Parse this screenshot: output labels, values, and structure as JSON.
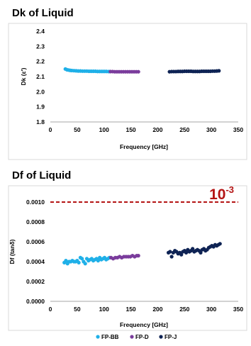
{
  "chart_data": [
    {
      "type": "scatter",
      "title": "Dk of Liquid",
      "xlabel": "Frequency [GHz]",
      "ylabel": "Dk (ε')",
      "xlim": [
        0,
        350
      ],
      "ylim": [
        1.8,
        2.4
      ],
      "xticks": [
        "0",
        "50",
        "100",
        "150",
        "200",
        "250",
        "300",
        "350"
      ],
      "yticks": [
        "1.8",
        "1.9",
        "2.0",
        "2.1",
        "2.2",
        "2.3",
        "2.4"
      ],
      "grid": false,
      "series": [
        {
          "name": "FP-BB",
          "color": "#1fb0e8",
          "x": [
            28,
            31,
            34,
            37,
            40,
            44,
            48,
            52,
            56,
            60,
            64,
            68,
            72,
            76,
            80,
            84,
            88,
            92,
            96,
            100,
            104,
            108,
            111
          ],
          "y": [
            2.15,
            2.145,
            2.143,
            2.141,
            2.14,
            2.139,
            2.138,
            2.137,
            2.137,
            2.136,
            2.136,
            2.136,
            2.135,
            2.135,
            2.135,
            2.135,
            2.134,
            2.134,
            2.134,
            2.134,
            2.134,
            2.133,
            2.133
          ]
        },
        {
          "name": "FP-D",
          "color": "#7a3c9c",
          "x": [
            112,
            116,
            120,
            124,
            128,
            132,
            136,
            140,
            144,
            148,
            152,
            156,
            160,
            164
          ],
          "y": [
            2.133,
            2.133,
            2.132,
            2.132,
            2.132,
            2.132,
            2.132,
            2.132,
            2.132,
            2.132,
            2.132,
            2.132,
            2.132,
            2.132
          ]
        },
        {
          "name": "FP-J",
          "color": "#0e2354",
          "x": [
            222,
            226,
            230,
            234,
            238,
            242,
            246,
            250,
            254,
            258,
            262,
            266,
            270,
            274,
            278,
            282,
            286,
            290,
            294,
            298,
            302,
            306,
            310,
            314
          ],
          "y": [
            2.132,
            2.133,
            2.133,
            2.133,
            2.134,
            2.134,
            2.134,
            2.135,
            2.135,
            2.135,
            2.135,
            2.134,
            2.134,
            2.134,
            2.134,
            2.135,
            2.135,
            2.135,
            2.135,
            2.135,
            2.136,
            2.136,
            2.137,
            2.138
          ]
        }
      ]
    },
    {
      "type": "scatter",
      "title": "Df of Liquid",
      "xlabel": "Frequency [GHz]",
      "ylabel": "Df (tanδ)",
      "xlim": [
        0,
        350
      ],
      "ylim": [
        0,
        0.001
      ],
      "xticks": [
        "0",
        "50",
        "100",
        "150",
        "200",
        "250",
        "300",
        "350"
      ],
      "yticks": [
        "0.0000",
        "0.0002",
        "0.0004",
        "0.0006",
        "0.0008",
        "0.0010"
      ],
      "grid": false,
      "reference_line": {
        "y": 0.001,
        "label_base": "10",
        "label_exp": "-3",
        "color": "#b41414"
      },
      "series": [
        {
          "name": "FP-BB",
          "color": "#1fb0e8",
          "x": [
            26,
            29,
            32,
            35,
            38,
            41,
            44,
            47,
            50,
            53,
            56,
            59,
            62,
            65,
            68,
            71,
            74,
            77,
            80,
            83,
            86,
            89,
            92,
            95,
            98,
            101,
            104,
            107,
            110
          ],
          "y": [
            0.00039,
            0.00041,
            0.00038,
            0.0004,
            0.0004,
            0.00041,
            0.0004,
            0.0004,
            0.00041,
            0.00039,
            0.00044,
            0.00043,
            0.0004,
            0.00038,
            0.00043,
            0.00041,
            0.00042,
            0.00043,
            0.00041,
            0.00042,
            0.00043,
            0.00041,
            0.00044,
            0.00042,
            0.00043,
            0.00044,
            0.00042,
            0.00043,
            0.00044
          ]
        },
        {
          "name": "FP-D",
          "color": "#7a3c9c",
          "x": [
            113,
            117,
            121,
            125,
            129,
            133,
            137,
            141,
            145,
            149,
            153,
            157,
            161,
            164
          ],
          "y": [
            0.00044,
            0.00043,
            0.00044,
            0.00044,
            0.00045,
            0.00044,
            0.00045,
            0.00045,
            0.00045,
            0.00045,
            0.00046,
            0.00045,
            0.00046,
            0.00046
          ]
        },
        {
          "name": "FP-J",
          "color": "#0e2354",
          "x": [
            220,
            223,
            226,
            229,
            232,
            235,
            238,
            241,
            244,
            247,
            250,
            253,
            256,
            259,
            262,
            265,
            268,
            271,
            274,
            277,
            280,
            283,
            286,
            289,
            292,
            295,
            298,
            301,
            304,
            307,
            310,
            313,
            316
          ],
          "y": [
            0.00049,
            0.0005,
            0.00045,
            0.00049,
            0.00051,
            0.0005,
            0.00048,
            0.00049,
            0.00047,
            0.0005,
            0.00051,
            0.00049,
            0.00052,
            0.0005,
            0.00051,
            0.00053,
            0.0005,
            0.00051,
            0.00052,
            0.00051,
            0.00049,
            0.00052,
            0.00053,
            0.00051,
            0.00052,
            0.00054,
            0.00055,
            0.00056,
            0.00055,
            0.00057,
            0.00056,
            0.00057,
            0.00058
          ]
        }
      ]
    }
  ],
  "legend": {
    "placement": "bottom-center",
    "items": [
      {
        "label": "FP-BB",
        "color": "#1fb0e8"
      },
      {
        "label": "FP-D",
        "color": "#7a3c9c"
      },
      {
        "label": "FP-J",
        "color": "#0e2354"
      }
    ]
  }
}
